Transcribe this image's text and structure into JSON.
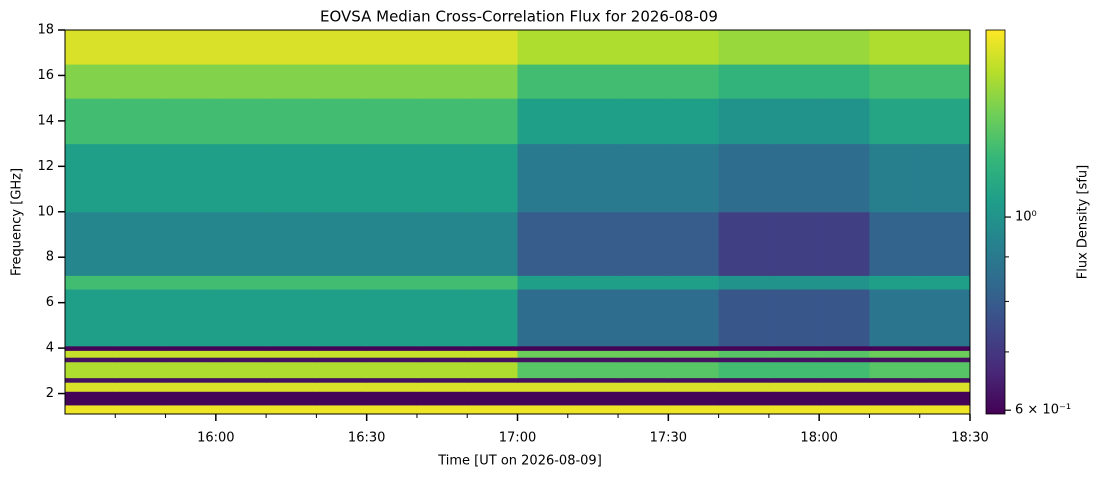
{
  "chart_data": {
    "type": "heatmap",
    "title": "EOVSA Median Cross-Correlation Flux for 2026-08-09",
    "x_label": "Time [UT on 2026-08-09]",
    "y_label": "Frequency [GHz]",
    "colormap": "viridis",
    "xlim": [
      "15:30",
      "18:30"
    ],
    "xticks": [
      "16:00",
      "16:30",
      "17:00",
      "17:30",
      "18:00",
      "18:30"
    ],
    "xminorticks": [
      "15:40",
      "15:50",
      "16:10",
      "16:20",
      "16:40",
      "16:50",
      "17:10",
      "17:20",
      "17:40",
      "17:50",
      "18:10",
      "18:20"
    ],
    "ylim": [
      1.1,
      18
    ],
    "yticks": [
      2,
      4,
      6,
      8,
      10,
      12,
      14,
      16,
      18
    ],
    "x_bins": [
      "15:30",
      "15:40",
      "15:50",
      "16:00",
      "16:10",
      "16:20",
      "16:30",
      "16:40",
      "16:50",
      "17:00",
      "17:10",
      "17:20",
      "17:30",
      "17:40",
      "17:50",
      "18:00",
      "18:10",
      "18:20",
      "18:30"
    ],
    "y_bins": [
      1.1,
      1.5,
      2.1,
      2.5,
      2.7,
      3.4,
      3.6,
      3.9,
      4.1,
      6.6,
      7.2,
      10,
      13,
      15,
      16.5,
      18
    ],
    "z": [
      [
        1.6,
        1.6,
        1.6,
        1.6,
        1.6,
        1.6,
        1.6,
        1.6,
        1.6,
        1.6,
        1.6,
        1.6,
        1.6,
        1.6,
        1.6,
        1.6,
        1.6,
        1.6
      ],
      [
        0.6,
        0.6,
        0.6,
        0.6,
        0.6,
        0.6,
        0.6,
        0.6,
        0.6,
        0.6,
        0.6,
        0.6,
        0.6,
        0.6,
        0.6,
        0.6,
        0.6,
        0.6
      ],
      [
        1.55,
        1.55,
        1.55,
        1.55,
        1.55,
        1.55,
        1.55,
        1.55,
        1.55,
        1.55,
        1.55,
        1.55,
        1.55,
        1.55,
        1.55,
        1.55,
        1.55,
        1.55
      ],
      [
        0.62,
        0.62,
        0.62,
        0.62,
        0.62,
        0.62,
        0.62,
        0.62,
        0.62,
        0.62,
        0.62,
        0.62,
        0.62,
        0.62,
        0.62,
        0.62,
        0.62,
        0.62
      ],
      [
        1.45,
        1.45,
        1.45,
        1.45,
        1.45,
        1.45,
        1.45,
        1.45,
        1.45,
        1.25,
        1.25,
        1.25,
        1.25,
        1.2,
        1.2,
        1.2,
        1.25,
        1.25
      ],
      [
        0.62,
        0.62,
        0.62,
        0.62,
        0.62,
        0.62,
        0.62,
        0.62,
        0.62,
        0.62,
        0.62,
        0.62,
        0.62,
        0.62,
        0.62,
        0.62,
        0.62,
        0.62
      ],
      [
        1.5,
        1.5,
        1.5,
        1.5,
        1.5,
        1.5,
        1.5,
        1.5,
        1.5,
        1.3,
        1.3,
        1.3,
        1.3,
        1.25,
        1.25,
        1.25,
        1.3,
        1.3
      ],
      [
        0.6,
        0.6,
        0.6,
        0.6,
        0.6,
        0.6,
        0.6,
        0.6,
        0.6,
        0.6,
        0.6,
        0.6,
        0.6,
        0.6,
        0.6,
        0.6,
        0.6,
        0.6
      ],
      [
        1.05,
        1.05,
        1.05,
        1.05,
        1.05,
        1.05,
        1.05,
        1.05,
        1.05,
        0.85,
        0.85,
        0.85,
        0.85,
        0.78,
        0.78,
        0.78,
        0.88,
        0.88
      ],
      [
        1.2,
        1.2,
        1.2,
        1.2,
        1.2,
        1.2,
        1.2,
        1.2,
        1.2,
        1.05,
        1.05,
        1.05,
        1.05,
        1.0,
        1.0,
        1.0,
        1.05,
        1.05
      ],
      [
        0.95,
        0.95,
        0.95,
        0.95,
        0.95,
        0.95,
        0.95,
        0.95,
        0.95,
        0.8,
        0.8,
        0.8,
        0.8,
        0.72,
        0.72,
        0.72,
        0.82,
        0.82
      ],
      [
        1.05,
        1.05,
        1.05,
        1.05,
        1.05,
        1.05,
        1.05,
        1.05,
        1.05,
        0.9,
        0.9,
        0.9,
        0.9,
        0.85,
        0.85,
        0.85,
        0.92,
        0.92
      ],
      [
        1.2,
        1.2,
        1.2,
        1.2,
        1.2,
        1.2,
        1.2,
        1.2,
        1.2,
        1.05,
        1.05,
        1.05,
        1.05,
        1.0,
        1.0,
        1.0,
        1.08,
        1.08
      ],
      [
        1.35,
        1.35,
        1.35,
        1.35,
        1.35,
        1.35,
        1.35,
        1.35,
        1.35,
        1.2,
        1.2,
        1.2,
        1.2,
        1.15,
        1.15,
        1.15,
        1.2,
        1.2
      ],
      [
        1.55,
        1.55,
        1.55,
        1.55,
        1.55,
        1.55,
        1.55,
        1.55,
        1.55,
        1.45,
        1.45,
        1.45,
        1.45,
        1.4,
        1.4,
        1.4,
        1.45,
        1.45
      ]
    ],
    "colorbar": {
      "label": "Flux Density [sfu]",
      "scale": "log",
      "lim": [
        0.594,
        1.64
      ],
      "ticks": [
        {
          "value": 0.6,
          "label": "6 × 10⁻¹"
        },
        {
          "value": 1,
          "label": "10⁰"
        }
      ],
      "minorticks": [
        0.7,
        0.8,
        0.9
      ]
    }
  }
}
